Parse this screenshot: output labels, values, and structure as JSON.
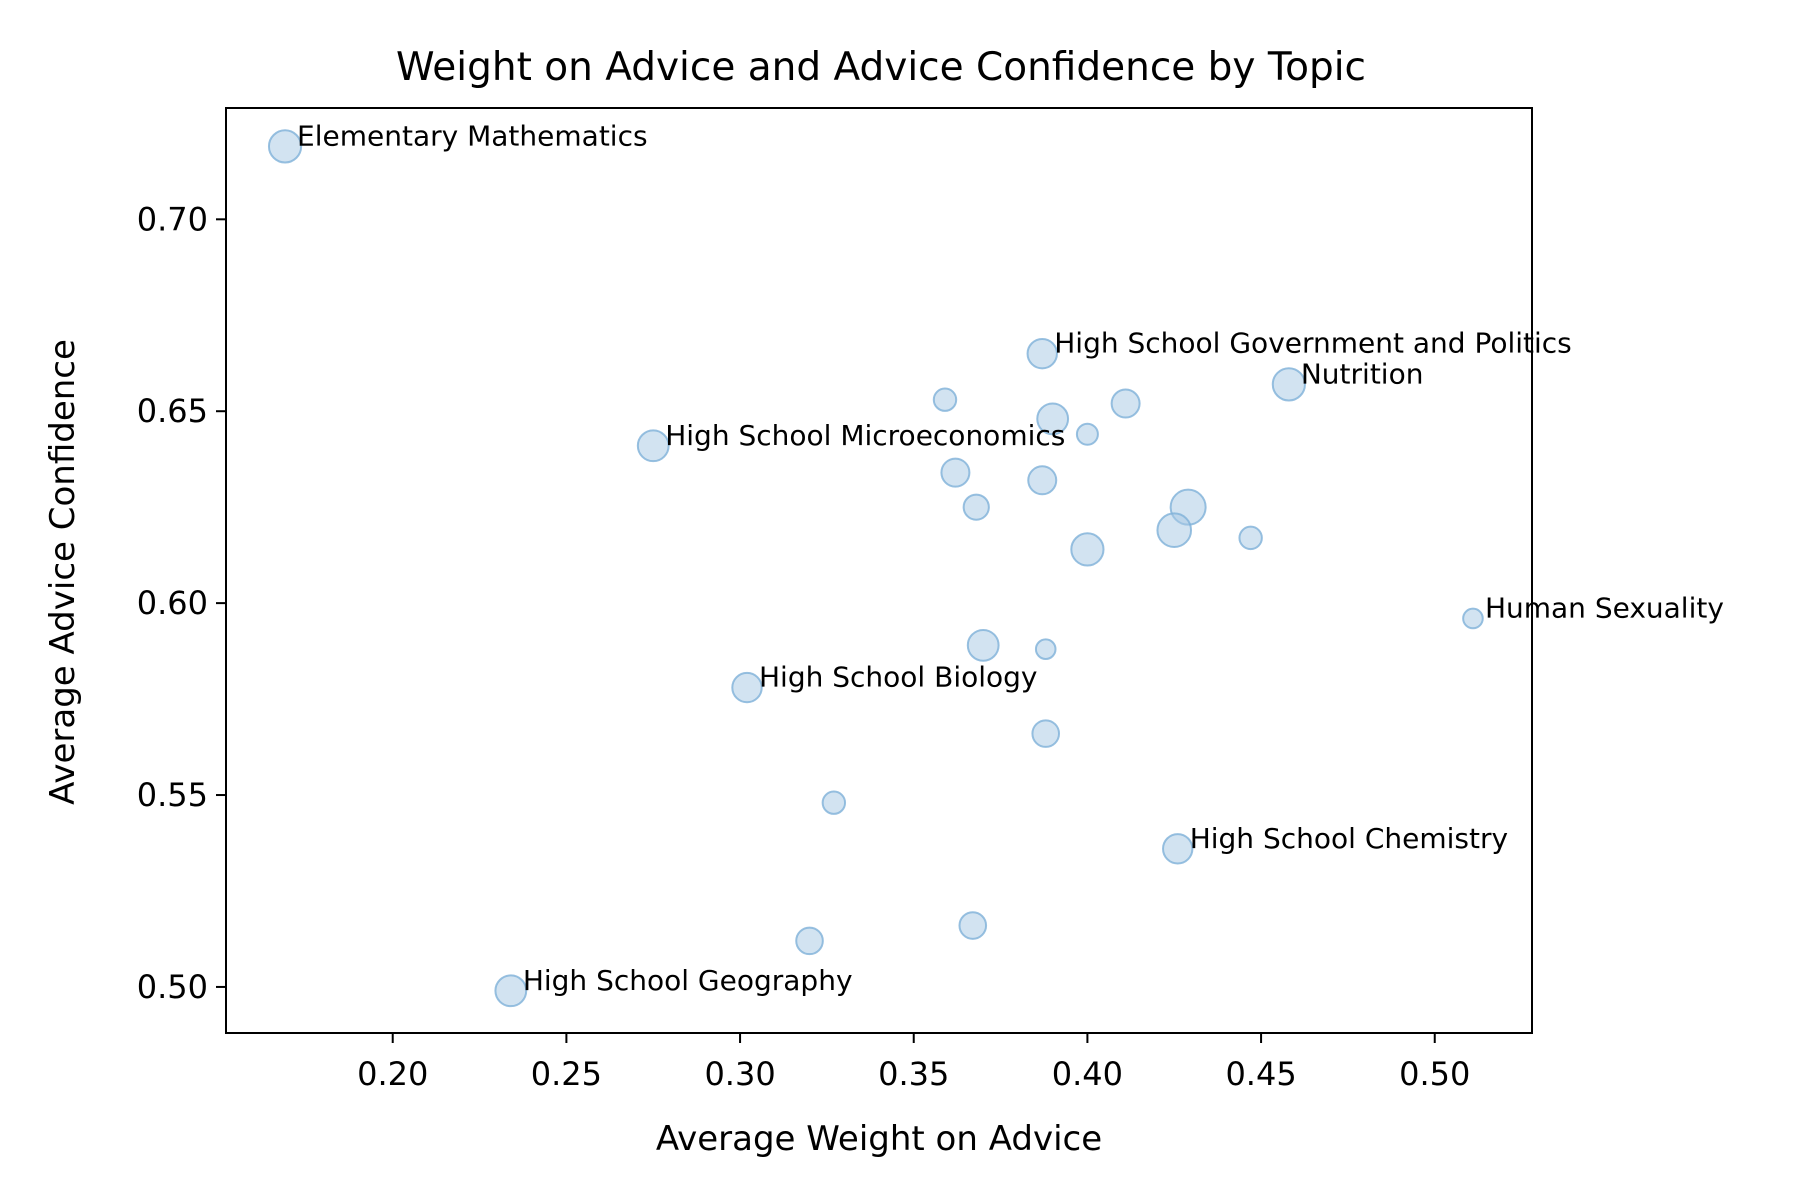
{
  "chart_data": {
    "type": "scatter",
    "title": "Weight on Advice and Advice Confidence by Topic",
    "xlabel": "Average Weight on Advice",
    "ylabel": "Average Advice Confidence",
    "xlim": [
      0.152,
      0.528
    ],
    "ylim": [
      0.488,
      0.729
    ],
    "xticks": [
      "0.20",
      "0.25",
      "0.30",
      "0.35",
      "0.40",
      "0.45",
      "0.50"
    ],
    "yticks": [
      "0.50",
      "0.55",
      "0.60",
      "0.65",
      "0.70"
    ],
    "grid": false,
    "marker_color": "#a6c8e3",
    "points": [
      {
        "x": 0.169,
        "y": 0.719,
        "size": 1.15,
        "label": "Elementary Mathematics"
      },
      {
        "x": 0.387,
        "y": 0.665,
        "size": 1.05,
        "label": "High School Government and Politics"
      },
      {
        "x": 0.458,
        "y": 0.657,
        "size": 1.15,
        "label": "Nutrition"
      },
      {
        "x": 0.275,
        "y": 0.641,
        "size": 1.1,
        "label": "High School Microeconomics"
      },
      {
        "x": 0.511,
        "y": 0.596,
        "size": 0.7,
        "label": "Human Sexuality"
      },
      {
        "x": 0.302,
        "y": 0.578,
        "size": 1.05,
        "label": "High School Biology"
      },
      {
        "x": 0.426,
        "y": 0.536,
        "size": 1.05,
        "label": "High School Chemistry"
      },
      {
        "x": 0.234,
        "y": 0.499,
        "size": 1.1,
        "label": "High School Geography"
      },
      {
        "x": 0.359,
        "y": 0.653,
        "size": 0.8,
        "label": ""
      },
      {
        "x": 0.39,
        "y": 0.648,
        "size": 1.1,
        "label": ""
      },
      {
        "x": 0.4,
        "y": 0.644,
        "size": 0.75,
        "label": ""
      },
      {
        "x": 0.411,
        "y": 0.652,
        "size": 1.0,
        "label": ""
      },
      {
        "x": 0.362,
        "y": 0.634,
        "size": 1.0,
        "label": ""
      },
      {
        "x": 0.387,
        "y": 0.632,
        "size": 1.0,
        "label": ""
      },
      {
        "x": 0.368,
        "y": 0.625,
        "size": 0.9,
        "label": ""
      },
      {
        "x": 0.429,
        "y": 0.625,
        "size": 1.25,
        "label": ""
      },
      {
        "x": 0.425,
        "y": 0.619,
        "size": 1.2,
        "label": ""
      },
      {
        "x": 0.447,
        "y": 0.617,
        "size": 0.8,
        "label": ""
      },
      {
        "x": 0.4,
        "y": 0.614,
        "size": 1.15,
        "label": ""
      },
      {
        "x": 0.37,
        "y": 0.589,
        "size": 1.1,
        "label": ""
      },
      {
        "x": 0.388,
        "y": 0.588,
        "size": 0.7,
        "label": ""
      },
      {
        "x": 0.388,
        "y": 0.566,
        "size": 0.95,
        "label": ""
      },
      {
        "x": 0.327,
        "y": 0.548,
        "size": 0.8,
        "label": ""
      },
      {
        "x": 0.367,
        "y": 0.516,
        "size": 0.95,
        "label": ""
      },
      {
        "x": 0.32,
        "y": 0.512,
        "size": 0.95,
        "label": ""
      }
    ]
  }
}
